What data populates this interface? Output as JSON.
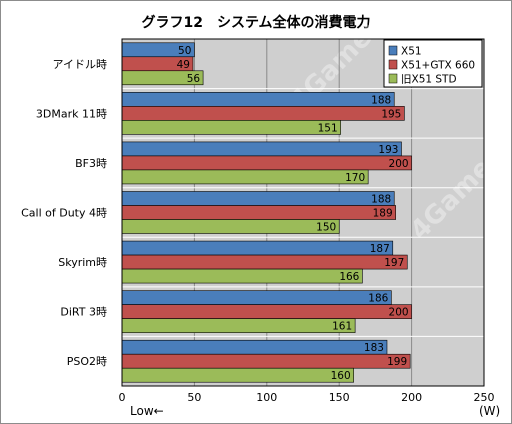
{
  "chart_data": {
    "type": "bar",
    "orientation": "horizontal",
    "title": "グラフ12　システム全体の消費電力",
    "categories": [
      "アイドル時",
      "3DMark 11時",
      "BF3時",
      "Call of Duty 4時",
      "Skyrim時",
      "DiRT 3時",
      "PSO2時"
    ],
    "series": [
      {
        "name": "X51",
        "color": "#4a7ebb",
        "values": [
          50,
          188,
          193,
          188,
          187,
          186,
          183
        ]
      },
      {
        "name": "X51+GTX 660",
        "color": "#c0504d",
        "values": [
          49,
          195,
          200,
          189,
          197,
          200,
          199
        ]
      },
      {
        "name": "旧X51 STD",
        "color": "#9bbb59",
        "values": [
          56,
          151,
          170,
          150,
          166,
          161,
          160
        ]
      }
    ],
    "xlim": [
      0,
      250
    ],
    "xticks": [
      0,
      50,
      100,
      150,
      200,
      250
    ],
    "xunit": "(W)",
    "note": "Low←",
    "grid": true,
    "legend_position": "top-right",
    "watermark": "4Gamer.net"
  }
}
